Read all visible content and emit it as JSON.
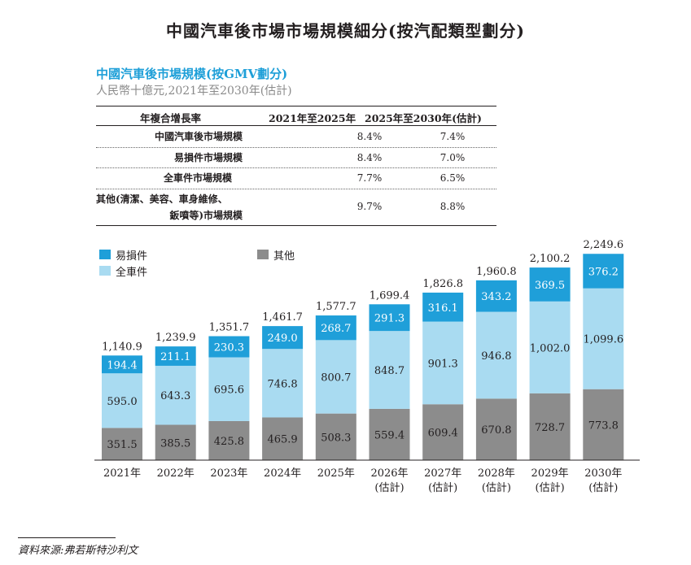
{
  "header": {
    "title": "中國汽車後市場市場規模細分(按汽配類型劃分)",
    "chart_title": "中國汽車後市場規模(按GMV劃分)",
    "chart_subtitle": "人民幣十億元,2021年至2030年(估計)"
  },
  "cagr_table": {
    "headers": [
      "年複合增長率",
      "2021年至2025年",
      "2025年至2030年(估計)"
    ],
    "rows": [
      {
        "label": "中國汽車後市場規模",
        "label2": "",
        "v1": "8.4%",
        "v2": "7.4%"
      },
      {
        "label": "易損件市場規模",
        "label2": "",
        "v1": "8.4%",
        "v2": "7.0%"
      },
      {
        "label": "全車件市場規模",
        "label2": "",
        "v1": "7.7%",
        "v2": "6.5%"
      },
      {
        "label": "其他(清潔、美容、車身維修、",
        "label2": "鈑噴等)市場規模",
        "v1": "9.7%",
        "v2": "8.8%"
      }
    ]
  },
  "legend": {
    "wear": "易損件",
    "full": "全車件",
    "other": "其他"
  },
  "colors": {
    "wear": "#1f9fd9",
    "full": "#a9dbf1",
    "other": "#8c8c8c",
    "title_blue": "#1e9fd8"
  },
  "chart_data": {
    "type": "bar",
    "stacked": true,
    "categories": [
      "2021年",
      "2022年",
      "2023年",
      "2024年",
      "2025年",
      "2026年",
      "2027年",
      "2028年",
      "2029年",
      "2030年"
    ],
    "category_sublabels": [
      "",
      "",
      "",
      "",
      "",
      "(估計)",
      "(估計)",
      "(估計)",
      "(估計)",
      "(估計)"
    ],
    "series": [
      {
        "name": "其他",
        "values": [
          351.5,
          385.5,
          425.8,
          465.9,
          508.3,
          559.4,
          609.4,
          670.8,
          728.7,
          773.8
        ]
      },
      {
        "name": "全車件",
        "values": [
          595.0,
          643.3,
          695.6,
          746.8,
          800.7,
          848.7,
          901.3,
          946.8,
          1002.0,
          1099.6
        ]
      },
      {
        "name": "易損件",
        "values": [
          194.4,
          211.1,
          230.3,
          249.0,
          268.7,
          291.3,
          316.1,
          343.2,
          369.5,
          376.2
        ]
      }
    ],
    "value_labels": [
      [
        "351.5",
        "385.5",
        "425.8",
        "465.9",
        "508.3",
        "559.4",
        "609.4",
        "670.8",
        "728.7",
        "773.8"
      ],
      [
        "595.0",
        "643.3",
        "695.6",
        "746.8",
        "800.7",
        "848.7",
        "901.3",
        "946.8",
        "1,002.0",
        "1,099.6"
      ],
      [
        "194.4",
        "211.1",
        "230.3",
        "249.0",
        "268.7",
        "291.3",
        "316.1",
        "343.2",
        "369.5",
        "376.2"
      ]
    ],
    "totals": [
      1140.9,
      1239.9,
      1351.7,
      1461.7,
      1577.7,
      1699.4,
      1826.8,
      1960.8,
      2100.2,
      2249.6
    ],
    "total_labels": [
      "1,140.9",
      "1,239.9",
      "1,351.7",
      "1,461.7",
      "1,577.7",
      "1,699.4",
      "1,826.8",
      "1,960.8",
      "2,100.2",
      "2,249.6"
    ],
    "legend_position": "top-left",
    "grid": false
  },
  "source": "資料來源:弗若斯特沙利文"
}
